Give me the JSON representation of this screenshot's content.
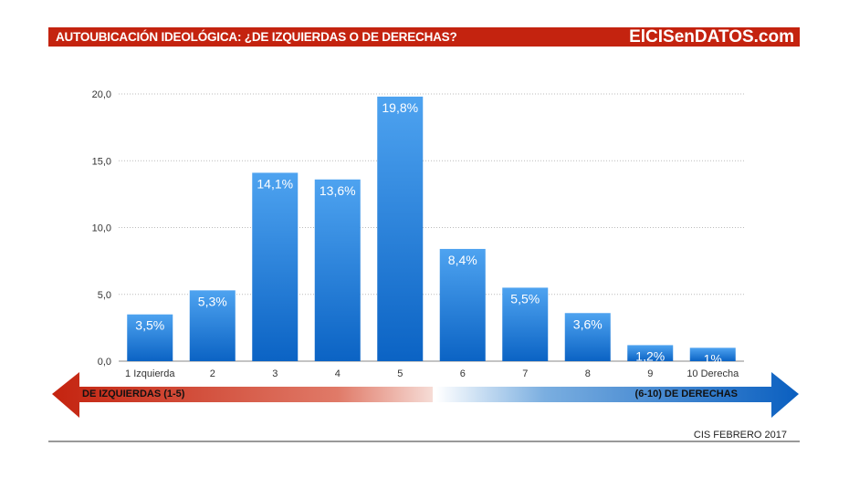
{
  "header": {
    "title": "AUTOUBICACIÓN IDEOLÓGICA: ¿DE IZQUIERDAS O DE DERECHAS?",
    "brand": "ElCISenDATOS.com"
  },
  "colors": {
    "banner": "#c4230f",
    "bar_top": "#4ea3f0",
    "bar_bottom": "#0b63c4",
    "left_arrow": "#c4230f",
    "right_arrow": "#0a5fc0"
  },
  "chart_data": {
    "type": "bar",
    "categories": [
      "1 Izquierda",
      "2",
      "3",
      "4",
      "5",
      "6",
      "7",
      "8",
      "9",
      "10 Derecha"
    ],
    "values": [
      3.5,
      5.3,
      14.1,
      13.6,
      19.8,
      8.4,
      5.5,
      3.6,
      1.2,
      1.0
    ],
    "data_labels": [
      "3,5%",
      "5,3%",
      "14,1%",
      "13,6%",
      "19,8%",
      "8,4%",
      "5,5%",
      "3,6%",
      "1,2%",
      "1%"
    ],
    "yticks": [
      "0,0",
      "5,0",
      "10,0",
      "15,0",
      "20,0"
    ],
    "ylim": [
      0,
      20
    ],
    "grid": true,
    "title": "",
    "xlabel": "",
    "ylabel": ""
  },
  "scale_arrow": {
    "left_label": "DE IZQUIERDAS (1-5)",
    "right_label": "(6-10) DE DERECHAS"
  },
  "footer": {
    "source": "CIS FEBRERO 2017"
  }
}
